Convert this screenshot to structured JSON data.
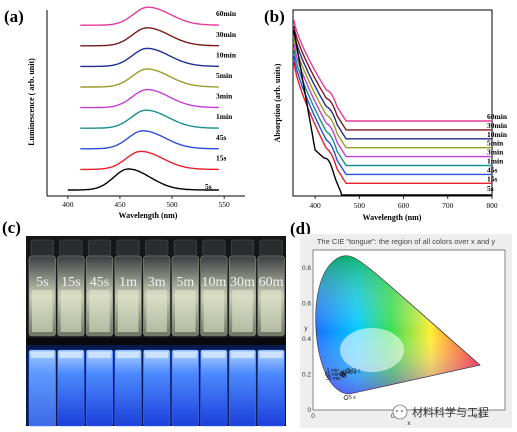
{
  "chart_data": [
    {
      "type": "line",
      "panel": "(a)",
      "xlabel": "Wavelength (nm)",
      "ylabel": "Luminescence ( arb. unit)",
      "xlim": [
        380,
        570
      ],
      "xticks": [
        "400",
        "450",
        "500",
        "550"
      ],
      "peak_nm": 475,
      "series": [
        {
          "name": "5s",
          "peak": 458,
          "color": "#000000"
        },
        {
          "name": "15s",
          "peak": 470,
          "color": "#e8202a"
        },
        {
          "name": "45s",
          "peak": 472,
          "color": "#2d4fd6"
        },
        {
          "name": "1min",
          "peak": 475,
          "color": "#1a8f8f"
        },
        {
          "name": "3min",
          "peak": 476,
          "color": "#c23fd1"
        },
        {
          "name": "5min",
          "peak": 476,
          "color": "#9b9b2a"
        },
        {
          "name": "10min",
          "peak": 476,
          "color": "#1f2f8f"
        },
        {
          "name": "30min",
          "peak": 476,
          "color": "#7a1a1a"
        },
        {
          "name": "60min",
          "peak": 477,
          "color": "#e83a9a"
        }
      ]
    },
    {
      "type": "line",
      "panel": "(b)",
      "xlabel": "Wavelength (nm)",
      "ylabel": "Absorption (arb. units)",
      "xlim": [
        350,
        800
      ],
      "xticks": [
        "400",
        "500",
        "600",
        "700",
        "800"
      ],
      "series": [
        {
          "name": "60min",
          "color": "#e83a9a"
        },
        {
          "name": "30min",
          "color": "#7a1a1a"
        },
        {
          "name": "10min",
          "color": "#1f2f8f"
        },
        {
          "name": "5min",
          "color": "#9b9b2a"
        },
        {
          "name": "3min",
          "color": "#c23fd1"
        },
        {
          "name": "1min",
          "color": "#1a8f8f"
        },
        {
          "name": "45s",
          "color": "#2d4fd6"
        },
        {
          "name": "15s",
          "color": "#e8202a"
        },
        {
          "name": "5s",
          "color": "#000000"
        }
      ]
    },
    {
      "type": "scatter",
      "panel": "(d)",
      "title": "The CIE \"tongue\": the region of all colors over x and y",
      "xlabel": "x",
      "ylabel": "y",
      "xticks": [
        "0",
        "0.4",
        "0.8"
      ],
      "yticks": [
        "0",
        "0.2",
        "0.4",
        "0.6",
        "0.8"
      ],
      "points": [
        {
          "label": "15 s",
          "x": 0.17,
          "y": 0.22
        },
        {
          "label": "45 s",
          "x": 0.15,
          "y": 0.21
        },
        {
          "label": "1 min",
          "x": 0.14,
          "y": 0.205
        },
        {
          "label": "60 min",
          "x": 0.145,
          "y": 0.2
        },
        {
          "label": "30 min",
          "x": 0.15,
          "y": 0.195
        },
        {
          "label": "5 s",
          "x": 0.16,
          "y": 0.07
        }
      ]
    }
  ],
  "panel_c": {
    "label": "(c)",
    "vials": [
      "5s",
      "15s",
      "45s",
      "1m",
      "3m",
      "5m",
      "10m",
      "30m",
      "60m"
    ]
  },
  "labels": {
    "a": "(a)",
    "b": "(b)",
    "d": "(d)"
  },
  "watermark": {
    "text": "材料科学与工程",
    "icon": "wechat-icon"
  }
}
